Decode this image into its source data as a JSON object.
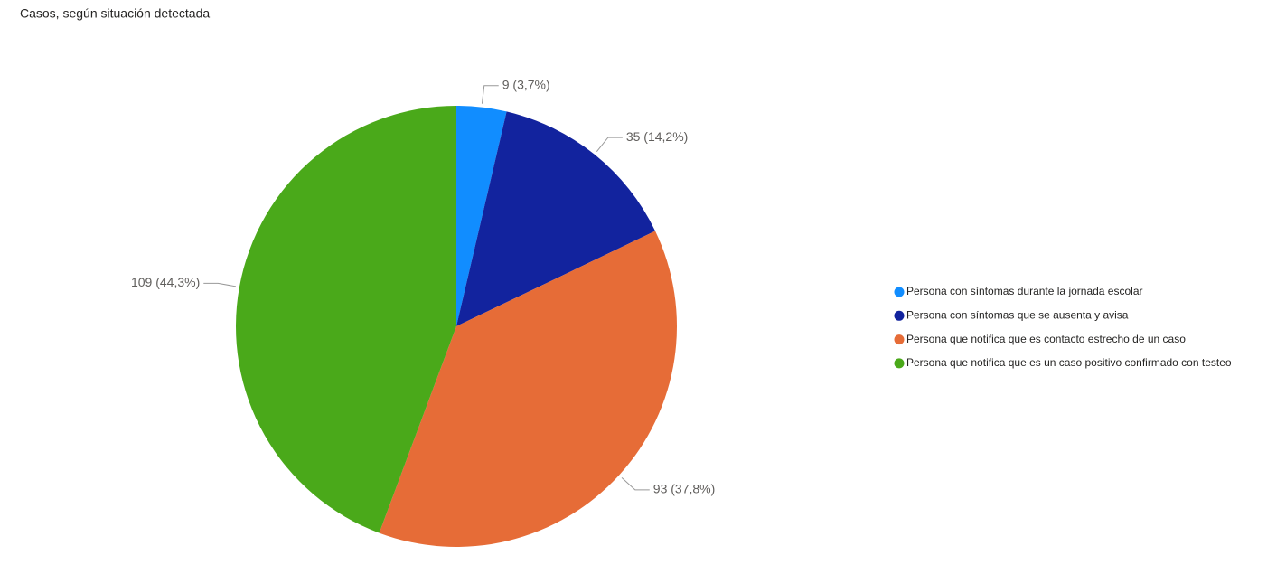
{
  "chart_data": {
    "type": "pie",
    "title": "Casos, según situación detectada",
    "categories": [
      "Persona con síntomas durante la jornada escolar",
      "Persona con síntomas que se ausenta y avisa",
      "Persona que notifica que es contacto estrecho de un caso",
      "Persona que notifica que es un caso positivo confirmado con testeo"
    ],
    "values": [
      9,
      35,
      93,
      109
    ],
    "value_labels": [
      "9 (3,7%)",
      "35 (14,2%)",
      "93 (37,8%)",
      "109 (44,3%)"
    ],
    "colors": [
      "#118DFF",
      "#12239E",
      "#E66C37",
      "#4AA91A"
    ]
  }
}
